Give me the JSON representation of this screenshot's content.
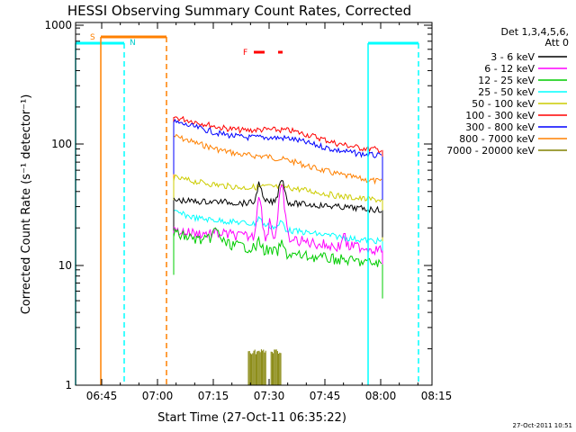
{
  "chart_data": {
    "type": "line",
    "title": "HESSI Observing Summary Count Rates, Corrected",
    "xlabel": "Start Time (27-Oct-11 06:35:22)",
    "ylabel": "Corrected Count Rate (s⁻¹ detector⁻¹)",
    "x_ticks": [
      "06:45",
      "07:00",
      "07:15",
      "07:30",
      "07:45",
      "08:00",
      "08:15"
    ],
    "y_ticks": [
      "1",
      "10",
      "100",
      "1000"
    ],
    "y_scale": "log",
    "ylim": [
      1,
      1000
    ],
    "legend_title": [
      "Det 1,3,4,5,6,",
      "Att 0"
    ],
    "legend_position": "right",
    "timestamp": "27-Oct-2011 10:51",
    "flag_labels": {
      "saa": "S",
      "night": "N",
      "flare": "F"
    },
    "series": [
      {
        "name": "3 - 6 keV",
        "color": "#000000",
        "level": [
          34,
          33,
          33,
          32,
          33,
          32,
          31,
          30,
          29,
          28
        ]
      },
      {
        "name": "6 - 12 keV",
        "color": "#ff00ff",
        "level": [
          19,
          18,
          18,
          17,
          17,
          16,
          15,
          14,
          14,
          13
        ]
      },
      {
        "name": "12 - 25 keV",
        "color": "#00cc00",
        "level": [
          18,
          16,
          15,
          14,
          13,
          12,
          11.5,
          11,
          10.5,
          10
        ]
      },
      {
        "name": "25 - 50 keV",
        "color": "#00ffff",
        "level": [
          27,
          24,
          23,
          22,
          21,
          19,
          18,
          17,
          16,
          15.5
        ]
      },
      {
        "name": "50 - 100 keV",
        "color": "#cccc00",
        "level": [
          52,
          48,
          45,
          43,
          44,
          43,
          40,
          37,
          35,
          34
        ]
      },
      {
        "name": "100 - 300 keV",
        "color": "#ff0000",
        "level": [
          165,
          150,
          135,
          128,
          130,
          128,
          115,
          100,
          92,
          88
        ]
      },
      {
        "name": "300 - 800 keV",
        "color": "#0000ff",
        "level": [
          150,
          135,
          120,
          112,
          112,
          110,
          98,
          88,
          82,
          78
        ]
      },
      {
        "name": "800 - 7000 keV",
        "color": "#ff8000",
        "level": [
          115,
          100,
          88,
          80,
          78,
          72,
          63,
          56,
          51,
          48
        ]
      },
      {
        "name": "7000 - 20000 keV",
        "color": "#808000",
        "level": []
      }
    ]
  }
}
